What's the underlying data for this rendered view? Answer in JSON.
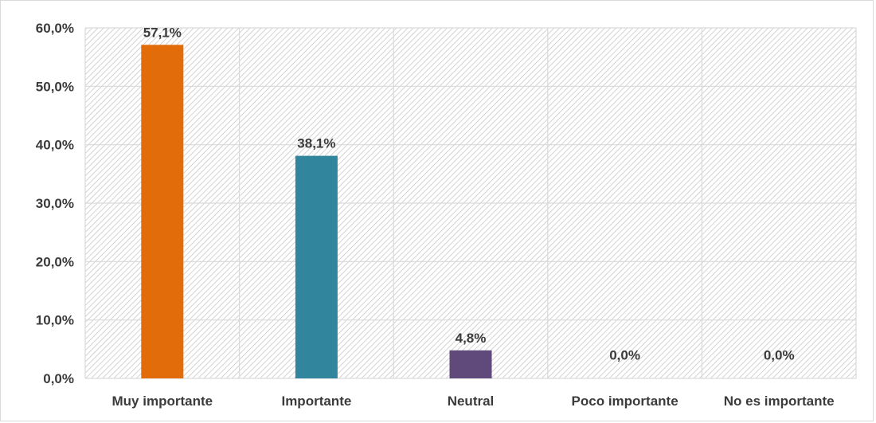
{
  "chart_data": {
    "type": "bar",
    "categories": [
      "Muy importante",
      "Importante",
      "Neutral",
      "Poco importante",
      "No es importante"
    ],
    "values": [
      57.1,
      38.1,
      4.8,
      0.0,
      0.0
    ],
    "data_labels": [
      "57,1%",
      "38,1%",
      "4,8%",
      "0,0%",
      "0,0%"
    ],
    "bar_colors": [
      "#E36C0A",
      "#31859C",
      "#604A7B",
      "#7F7F7F",
      "#7F7F7F"
    ],
    "title": "",
    "xlabel": "",
    "ylabel": "",
    "ylim": [
      0,
      60
    ],
    "yticks": [
      0,
      10,
      20,
      30,
      40,
      50,
      60
    ],
    "ytick_labels": [
      "0,0%",
      "10,0%",
      "20,0%",
      "30,0%",
      "40,0%",
      "50,0%",
      "60,0%"
    ],
    "grid": true,
    "legend": "none",
    "plot_background": "hatched light gray",
    "grid_color": "#d9d9d9"
  }
}
